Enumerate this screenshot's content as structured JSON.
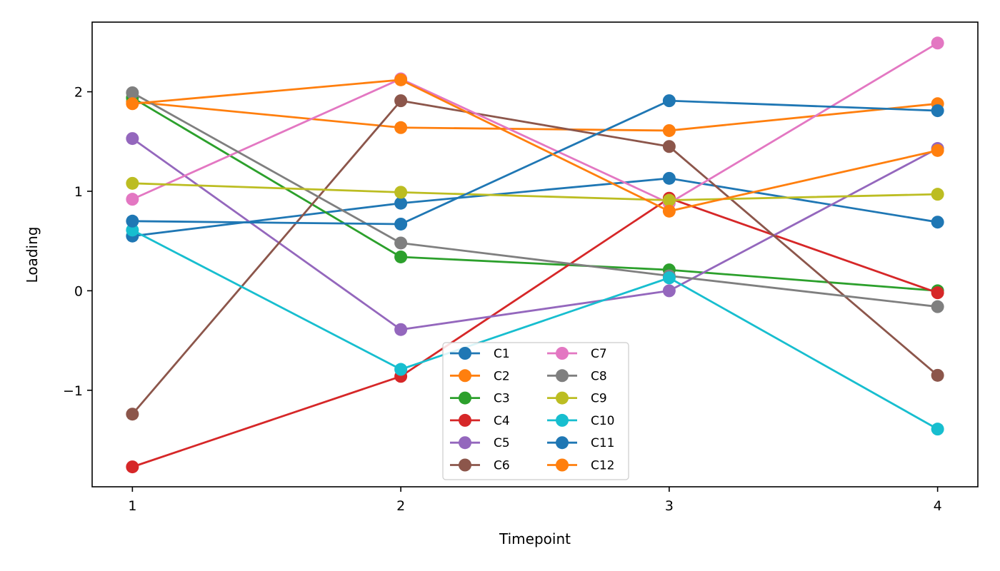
{
  "chart_data": {
    "type": "line",
    "title": "",
    "xlabel": "Timepoint",
    "ylabel": "Loading",
    "x": [
      1,
      2,
      3,
      4
    ],
    "xlim": [
      0.85,
      4.15
    ],
    "ylim": [
      -1.97,
      2.7
    ],
    "xticks": [
      1,
      2,
      3,
      4
    ],
    "yticks": [
      -1,
      0,
      1,
      2
    ],
    "ytick_labels": [
      "−1",
      "0",
      "1",
      "2"
    ],
    "grid": false,
    "legend": {
      "position": "bottom-center",
      "columns": 2
    },
    "series": [
      {
        "name": "C1",
        "color": "#1f77b4",
        "values": [
          0.55,
          0.88,
          1.13,
          0.69
        ]
      },
      {
        "name": "C2",
        "color": "#ff7f0e",
        "values": [
          1.9,
          1.64,
          1.61,
          1.88
        ]
      },
      {
        "name": "C3",
        "color": "#2ca02c",
        "values": [
          1.94,
          0.34,
          0.21,
          0.0
        ]
      },
      {
        "name": "C4",
        "color": "#d62728",
        "values": [
          -1.77,
          -0.86,
          0.93,
          -0.02
        ]
      },
      {
        "name": "C5",
        "color": "#9467bd",
        "values": [
          1.53,
          -0.39,
          0.0,
          1.43
        ]
      },
      {
        "name": "C6",
        "color": "#8c564b",
        "values": [
          -1.24,
          1.91,
          1.45,
          -0.85
        ]
      },
      {
        "name": "C7",
        "color": "#e377c2",
        "values": [
          0.92,
          2.13,
          0.88,
          2.49
        ]
      },
      {
        "name": "C8",
        "color": "#7f7f7f",
        "values": [
          1.99,
          0.48,
          0.15,
          -0.16
        ]
      },
      {
        "name": "C9",
        "color": "#bcbd22",
        "values": [
          1.08,
          0.99,
          0.91,
          0.97
        ]
      },
      {
        "name": "C10",
        "color": "#17becf",
        "values": [
          0.61,
          -0.79,
          0.13,
          -1.39
        ]
      },
      {
        "name": "C11",
        "color": "#1f77b4",
        "values": [
          0.7,
          0.67,
          1.91,
          1.81
        ]
      },
      {
        "name": "C12",
        "color": "#ff7f0e",
        "values": [
          1.88,
          2.12,
          0.8,
          1.41
        ]
      }
    ]
  }
}
